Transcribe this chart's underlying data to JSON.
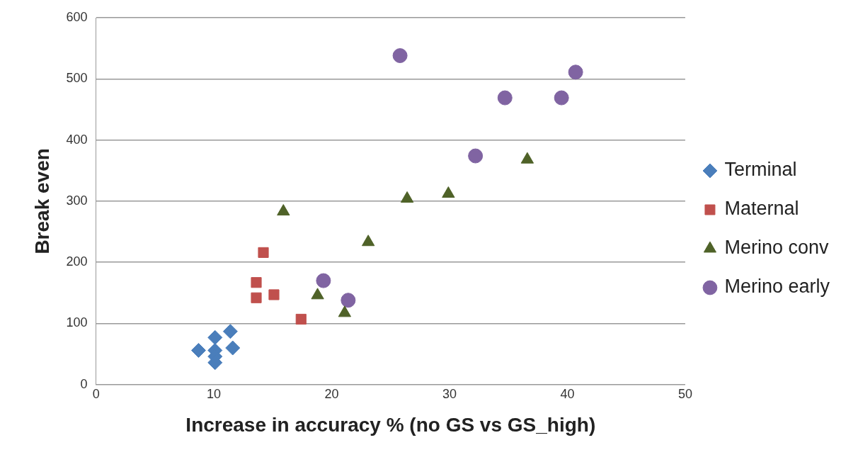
{
  "chart_data": {
    "type": "scatter",
    "xlabel": "Increase in accuracy % (no GS vs GS_high)",
    "ylabel": "Break even",
    "xlim": [
      0,
      50
    ],
    "xticks": [
      0,
      10,
      20,
      30,
      40,
      50
    ],
    "ylim": [
      0,
      600
    ],
    "yticks": [
      0,
      100,
      200,
      300,
      400,
      500,
      600
    ],
    "grid": "y",
    "legend": "right",
    "series": [
      {
        "name": "Terminal",
        "color": "#4a7ebb",
        "marker": "diamond",
        "x": [
          8.7,
          10.1,
          10.1,
          10.1,
          10.1,
          11.4,
          11.6
        ],
        "values": [
          56,
          77,
          56,
          46,
          36,
          87,
          60
        ]
      },
      {
        "name": "Maternal",
        "color": "#c0504d",
        "marker": "square",
        "x": [
          14.2,
          13.6,
          13.6,
          15.1,
          17.4
        ],
        "values": [
          216,
          167,
          142,
          147,
          107
        ]
      },
      {
        "name": "Merino conv",
        "color": "#4f6228",
        "marker": "triangle",
        "x": [
          15.9,
          18.8,
          21.1,
          23.1,
          26.4,
          29.9,
          36.6
        ],
        "values": [
          283,
          146,
          117,
          233,
          304,
          312,
          368
        ]
      },
      {
        "name": "Merino early",
        "color": "#8064a2",
        "marker": "circle",
        "x": [
          19.3,
          21.4,
          25.8,
          32.2,
          34.7,
          39.5,
          40.7
        ],
        "values": [
          170,
          138,
          538,
          374,
          469,
          469,
          511
        ]
      }
    ]
  }
}
